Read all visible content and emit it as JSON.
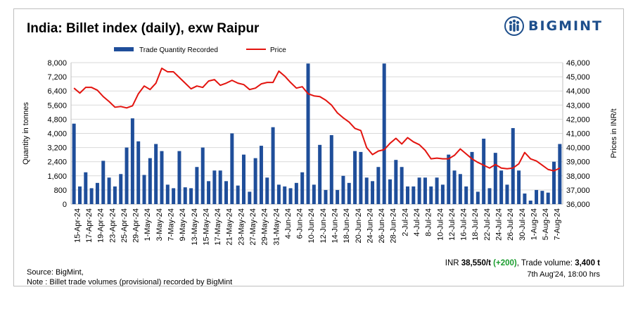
{
  "title": "India: Billet index (daily), exw Raipur",
  "logo": {
    "text": "BIGMINT",
    "icon": "bigmint-globe-people-icon"
  },
  "footer": {
    "source": "Source: BigMint,",
    "note": "Note : Billet trade volumes (provisional) recorded by BigMint",
    "price_prefix": "INR ",
    "price_value": "38,550/t",
    "price_change": "(+200)",
    "volume_prefix": ", Trade volume: ",
    "volume_value": "3,400 t",
    "timestamp": "7th Aug'24, 18:00 hrs"
  },
  "colors": {
    "bar": "#1f4e9a",
    "line": "#e3140f",
    "grid": "#d9d9d9",
    "change": "#1a9c2e"
  },
  "chart_data": {
    "type": "bar+line",
    "legend": [
      "Trade Quantity Recorded",
      "Price"
    ],
    "legend_position": "top",
    "ylabel_left": "Quantity in tonnes",
    "ylabel_right": "Prices in INR/t",
    "ylim_left": [
      0,
      8000
    ],
    "yticks_left": [
      "0",
      "800",
      "1,600",
      "2,400",
      "3,200",
      "4,000",
      "4,800",
      "5,600",
      "6,400",
      "7,200",
      "8,000"
    ],
    "ylim_right": [
      36000,
      46000
    ],
    "yticks_right": [
      "36,000",
      "37,000",
      "38,000",
      "39,000",
      "40,000",
      "41,000",
      "42,000",
      "43,000",
      "44,000",
      "45,000",
      "46,000"
    ],
    "grid": true,
    "x_labels": [
      "15-Apr-24",
      "17-Apr-24",
      "19-Apr-24",
      "23-Apr-24",
      "25-Apr-24",
      "29-Apr-24",
      "1-May-24",
      "3-May-24",
      "7-May-24",
      "9-May-24",
      "13-May-24",
      "15-May-24",
      "17-May-24",
      "21-May-24",
      "23-May-24",
      "27-May-24",
      "29-May-24",
      "31-May-24",
      "4-Jun-24",
      "6-Jun-24",
      "10-Jun-24",
      "12-Jun-24",
      "14-Jun-24",
      "18-Jun-24",
      "20-Jun-24",
      "24-Jun-24",
      "26-Jun-24",
      "28-Jun-24",
      "2-Jul-24",
      "4-Jul-24",
      "8-Jul-24",
      "10-Jul-24",
      "12-Jul-24",
      "16-Jul-24",
      "18-Jul-24",
      "22-Jul-24",
      "24-Jul-24",
      "26-Jul-24",
      "30-Jul-24",
      "1-Aug-24",
      "5-Aug-24",
      "7-Aug-24"
    ],
    "trade_quantity": [
      4550,
      1000,
      1800,
      900,
      1200,
      2450,
      1500,
      1000,
      1700,
      3200,
      4850,
      3550,
      1650,
      2600,
      3400,
      3000,
      1100,
      900,
      3000,
      950,
      900,
      2100,
      3200,
      1300,
      1900,
      1900,
      1300,
      4000,
      1050,
      2800,
      700,
      2600,
      3300,
      1500,
      4350,
      1100,
      1000,
      900,
      1200,
      1800,
      7950,
      1100,
      3350,
      800,
      3900,
      800,
      1600,
      1200,
      3000,
      2950,
      1500,
      1300,
      2100,
      7950,
      1400,
      2500,
      2100,
      1000,
      1000,
      1500,
      1500,
      1000,
      1500,
      1100,
      2800,
      1900,
      1700,
      1000,
      2950,
      700,
      3700,
      900,
      2900,
      1900,
      1100,
      4300,
      1900,
      600,
      200,
      800,
      750,
      650,
      2400,
      3400
    ],
    "price": [
      44200,
      43850,
      44250,
      44250,
      44050,
      43600,
      43250,
      42850,
      42900,
      42800,
      42950,
      43800,
      44350,
      44100,
      44550,
      45600,
      45350,
      45350,
      44950,
      44550,
      44150,
      44350,
      44250,
      44700,
      44800,
      44400,
      44550,
      44750,
      44550,
      44450,
      44100,
      44200,
      44500,
      44600,
      44600,
      45400,
      45050,
      44600,
      44200,
      44300,
      43800,
      43650,
      43600,
      43350,
      43000,
      42450,
      42100,
      41800,
      41350,
      41200,
      40000,
      39500,
      39750,
      39850,
      40300,
      40650,
      40250,
      40700,
      40400,
      40200,
      39800,
      39200,
      39250,
      39200,
      39200,
      39450,
      39900,
      39550,
      39200,
      38950,
      38750,
      38550,
      38800,
      38550,
      38500,
      38550,
      38850,
      39650,
      39200,
      39050,
      38750,
      38450,
      38350,
      38550
    ]
  }
}
